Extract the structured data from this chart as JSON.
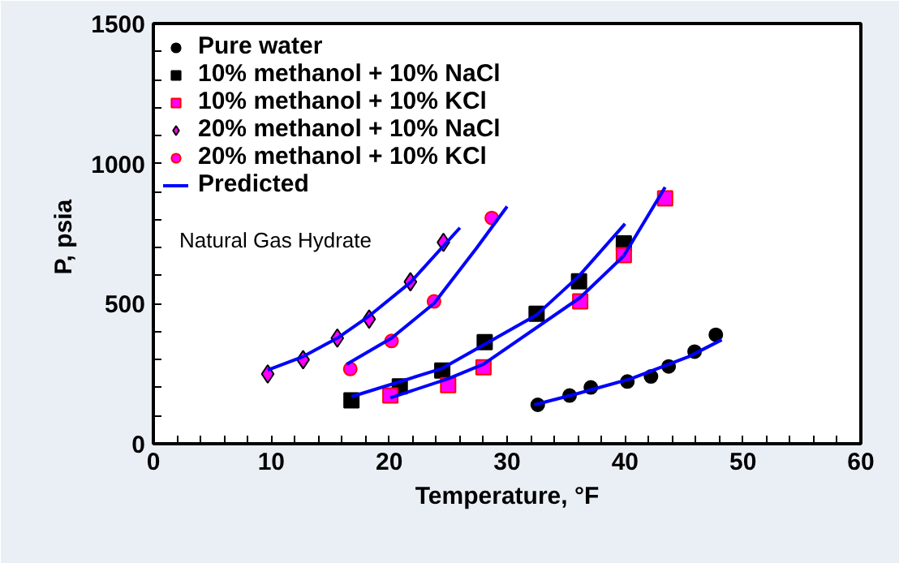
{
  "chart_data": {
    "type": "scatter",
    "xlabel": "Temperature, °F",
    "ylabel": "P,  psia",
    "annotations": [
      "Natural Gas Hydrate"
    ],
    "xlim": [
      0,
      60
    ],
    "ylim": [
      0,
      1500
    ],
    "xticks": [
      0,
      {
        "value": 2,
        "label": null
      },
      {
        "value": 4,
        "label": null
      },
      {
        "value": 6,
        "label": null
      },
      {
        "value": 8,
        "label": null
      },
      10,
      {
        "value": 12,
        "label": null
      },
      {
        "value": 14,
        "label": null
      },
      {
        "value": 16,
        "label": null
      },
      {
        "value": 18,
        "label": null
      },
      20,
      {
        "value": 22,
        "label": null
      },
      {
        "value": 24,
        "label": null
      },
      {
        "value": 26,
        "label": null
      },
      {
        "value": 28,
        "label": null
      },
      30,
      {
        "value": 32,
        "label": null
      },
      {
        "value": 34,
        "label": null
      },
      {
        "value": 36,
        "label": null
      },
      {
        "value": 38,
        "label": null
      },
      40,
      {
        "value": 42,
        "label": null
      },
      {
        "value": 44,
        "label": null
      },
      {
        "value": 46,
        "label": null
      },
      {
        "value": 48,
        "label": null
      },
      50,
      {
        "value": 52,
        "label": null
      },
      {
        "value": 54,
        "label": null
      },
      {
        "value": 56,
        "label": null
      },
      {
        "value": 58,
        "label": null
      },
      60
    ],
    "yticks": [
      0,
      {
        "value": 100,
        "label": null
      },
      {
        "value": 200,
        "label": null
      },
      {
        "value": 300,
        "label": null
      },
      {
        "value": 400,
        "label": null
      },
      500,
      {
        "value": 600,
        "label": null
      },
      {
        "value": 700,
        "label": null
      },
      {
        "value": 800,
        "label": null
      },
      {
        "value": 900,
        "label": null
      },
      1000,
      {
        "value": 1100,
        "label": null
      },
      {
        "value": 1200,
        "label": null
      },
      {
        "value": 1300,
        "label": null
      },
      {
        "value": 1400,
        "label": null
      },
      1500
    ],
    "grid": false,
    "legend": "top left",
    "series": [
      {
        "name": "Pure water",
        "marker": "circle",
        "color": "#000000",
        "x": [
          32.6,
          35.3,
          37.1,
          40.2,
          42.2,
          43.7,
          45.9,
          47.7
        ],
        "values": [
          139,
          172,
          201,
          222,
          240,
          276,
          329,
          389
        ]
      },
      {
        "name": "10% methanol + 10% NaCl",
        "marker": "square",
        "color": "#000000",
        "x": [
          16.8,
          20.9,
          24.5,
          28.1,
          32.5,
          36.1,
          39.9
        ],
        "values": [
          155,
          205,
          261,
          363,
          464,
          580,
          715
        ]
      },
      {
        "name": "10% methanol + 10% KCl",
        "marker": "square",
        "color": "#ff00ff",
        "x": [
          20.1,
          25.0,
          28.0,
          36.2,
          39.9,
          43.4
        ],
        "values": [
          172,
          209,
          273,
          508,
          673,
          876
        ]
      },
      {
        "name": "20% methanol + 10% NaCl",
        "marker": "diamond",
        "color": "#ff00ff",
        "x": [
          9.7,
          12.7,
          15.6,
          18.3,
          21.8,
          24.6
        ],
        "values": [
          249,
          300,
          377,
          445,
          578,
          719
        ]
      },
      {
        "name": "20% methanol + 10% KCl",
        "marker": "circle",
        "color": "#ff00ff",
        "x": [
          16.7,
          20.2,
          23.8,
          28.7
        ],
        "values": [
          267,
          367,
          508,
          806
        ]
      },
      {
        "name": "Predicted",
        "type": "line",
        "marker": "none",
        "color": "#0000ff",
        "x": [
          32.3,
          35.7,
          40.5,
          45.4,
          48.2
        ],
        "values": [
          139,
          176,
          232,
          311,
          371
        ]
      },
      {
        "type": "line",
        "marker": "none",
        "color": "#0000ff",
        "x": [
          16.8,
          24.5,
          32.5,
          36.1,
          40.0
        ],
        "values": [
          168,
          269,
          460,
          599,
          785
        ]
      },
      {
        "type": "line",
        "marker": "none",
        "color": "#0000ff",
        "x": [
          20.1,
          25.0,
          28.0,
          36.2,
          39.9,
          43.4
        ],
        "values": [
          164,
          232,
          284,
          522,
          671,
          916
        ]
      },
      {
        "type": "line",
        "marker": "none",
        "color": "#0000ff",
        "x": [
          9.7,
          12.7,
          15.6,
          18.3,
          21.8,
          26.0
        ],
        "values": [
          263,
          311,
          377,
          456,
          576,
          771
        ]
      },
      {
        "type": "line",
        "marker": "none",
        "color": "#0000ff",
        "x": [
          16.4,
          20.2,
          23.8,
          27.4,
          30.0
        ],
        "values": [
          284,
          377,
          501,
          698,
          847
        ]
      }
    ]
  }
}
